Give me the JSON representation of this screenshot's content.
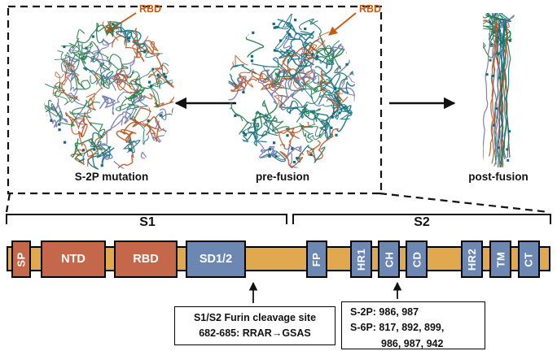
{
  "structures": [
    {
      "label": "S-2P mutation",
      "rbd_label": "RBD"
    },
    {
      "label": "pre-fusion",
      "rbd_label": "RBD"
    },
    {
      "label": "post-fusion"
    }
  ],
  "regions": [
    {
      "label": "S1"
    },
    {
      "label": "S2"
    }
  ],
  "domains": [
    {
      "label": "SP",
      "color": "#c5674b",
      "vertical": true
    },
    {
      "label": "NTD",
      "color": "#c5674b",
      "vertical": false
    },
    {
      "label": "RBD",
      "color": "#c5674b",
      "vertical": false
    },
    {
      "label": "SD1/2",
      "color": "#6d87b3",
      "vertical": false
    },
    {
      "label": "FP",
      "color": "#6d87b3",
      "vertical": true
    },
    {
      "label": "HR1",
      "color": "#6d87b3",
      "vertical": true
    },
    {
      "label": "CH",
      "color": "#6d87b3",
      "vertical": true
    },
    {
      "label": "CD",
      "color": "#6d87b3",
      "vertical": true
    },
    {
      "label": "HR2",
      "color": "#6d87b3",
      "vertical": true
    },
    {
      "label": "TM",
      "color": "#6d87b3",
      "vertical": true
    },
    {
      "label": "CT",
      "color": "#6d87b3",
      "vertical": true
    }
  ],
  "annotations": {
    "furin": {
      "line1": "S1/S2 Furin cleavage site",
      "line2": "682-685: RRAR→GSAS"
    },
    "proline": {
      "line1": "S-2P: 986, 987",
      "line2": "S-6P: 817, 892, 899,",
      "line3": "986, 987, 942"
    }
  },
  "colors": {
    "backbone_tan": "#e0a84f",
    "domain_red": "#c5674b",
    "domain_blue": "#6d87b3",
    "rbd_orange": "#c55a11",
    "glycan_teal": "#16697a",
    "outline_black": "#111111"
  },
  "ribbon_colors": [
    "#b5541f",
    "#1e7a45",
    "#6e72b0",
    "#106e7e"
  ]
}
